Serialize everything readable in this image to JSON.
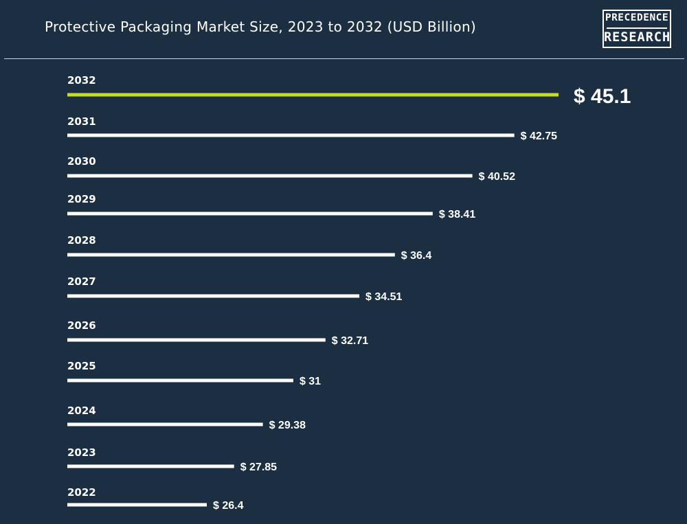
{
  "title": "Protective Packaging Market Size, 2023 to 2032 (USD Billion)",
  "logo": {
    "line1": "PRECEDENCE",
    "line2": "RESEARCH"
  },
  "colors": {
    "background": "#1c2f42",
    "bar": "#ffffff",
    "highlight": "#c6dc26",
    "text": "#ffffff"
  },
  "chart_data": {
    "type": "bar",
    "orientation": "horizontal",
    "categories": [
      "2032",
      "2031",
      "2030",
      "2029",
      "2028",
      "2027",
      "2026",
      "2025",
      "2024",
      "2023",
      "2022"
    ],
    "values": [
      45.1,
      42.75,
      40.52,
      38.41,
      36.4,
      34.51,
      32.71,
      31,
      29.38,
      27.85,
      26.4
    ],
    "value_labels": [
      "$ 45.1",
      "$ 42.75",
      "$ 40.52",
      "$ 38.41",
      "$ 36.4",
      "$ 34.51",
      "$ 32.71",
      "$ 31",
      "$ 29.38",
      "$ 27.85",
      "$ 26.4"
    ],
    "highlight_category": "2032",
    "title": "Protective Packaging Market Size, 2023 to 2032 (USD Billion)",
    "xlabel": "",
    "ylabel": "",
    "grid": false,
    "legend": "none"
  }
}
